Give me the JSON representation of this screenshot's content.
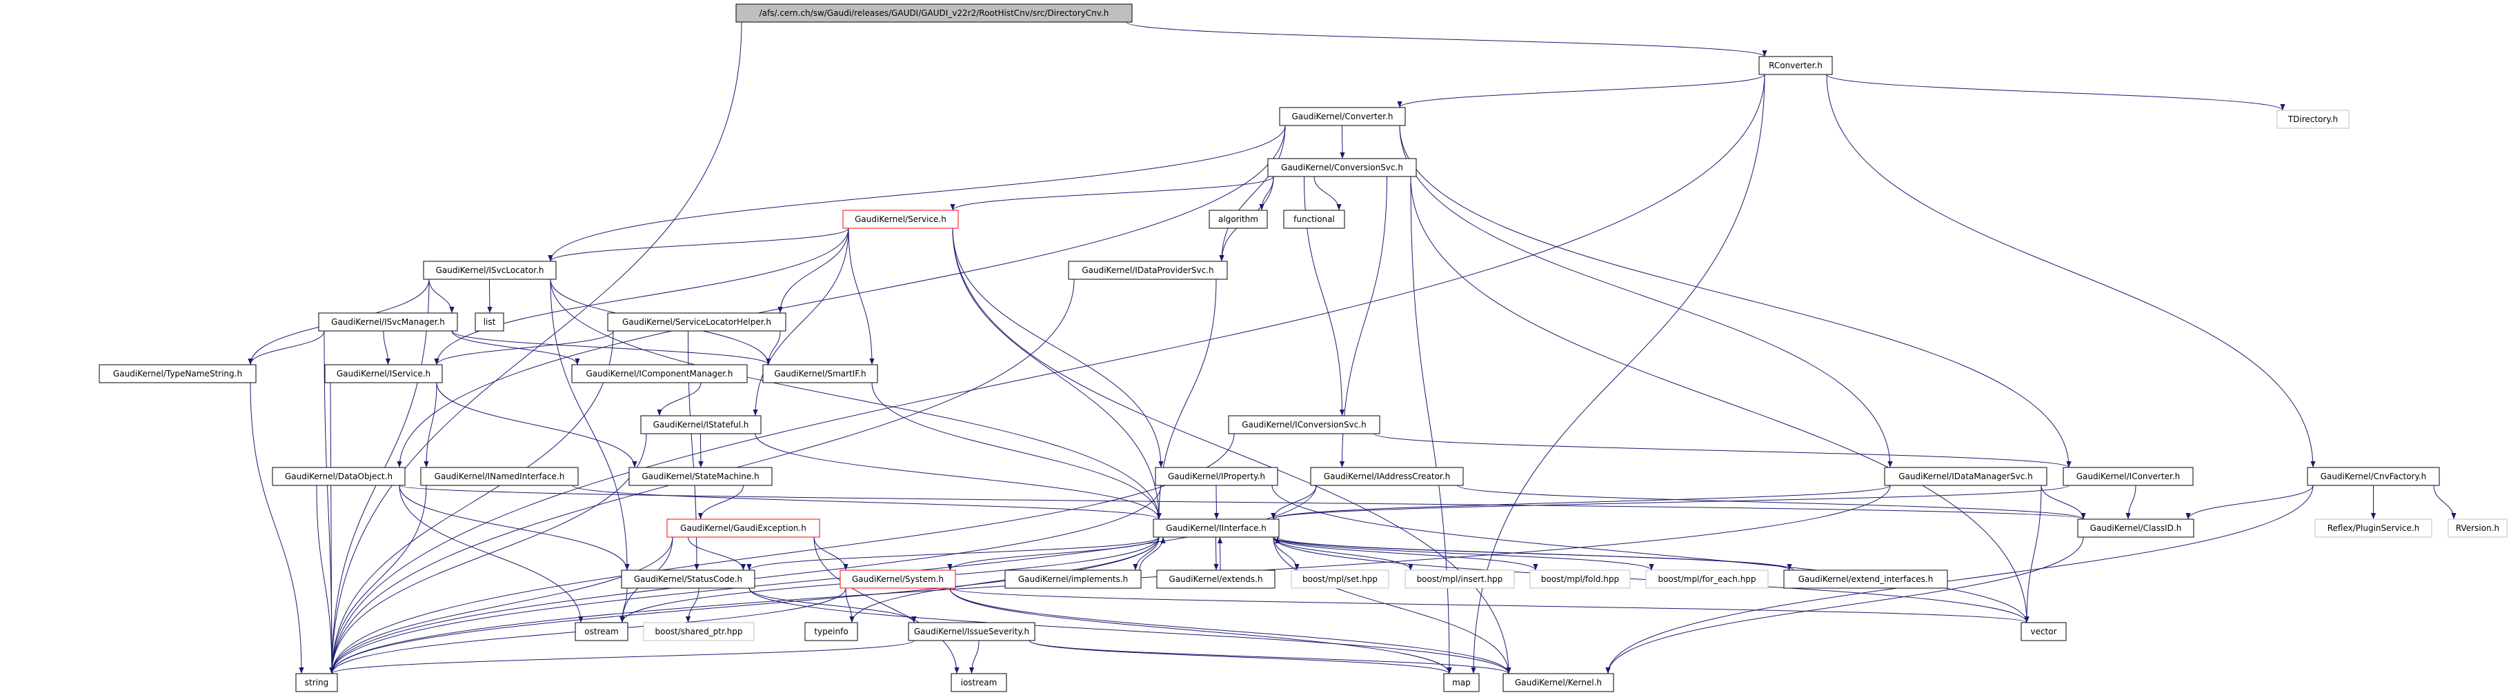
{
  "colors": {
    "edge": "#191970",
    "root_fill": "#bfbfbf",
    "external_border": "#bfbfbf",
    "incomplete_border": "#ff0000",
    "node_border": "#000000"
  },
  "nodes": [
    {
      "id": "title",
      "label": "/afs/.cern.ch/sw/Gaudi/releases/GAUDI/GAUDI_v22r2/RootHistCnv/src/DirectoryCnv.h",
      "style": "root"
    },
    {
      "id": "RConverter",
      "label": "RConverter.h",
      "style": "normal"
    },
    {
      "id": "TDirectory",
      "label": "TDirectory.h",
      "style": "ext"
    },
    {
      "id": "Converter",
      "label": "GaudiKernel/Converter.h",
      "style": "normal"
    },
    {
      "id": "ConversionSvc",
      "label": "GaudiKernel/ConversionSvc.h",
      "style": "normal"
    },
    {
      "id": "Service",
      "label": "GaudiKernel/Service.h",
      "style": "red"
    },
    {
      "id": "algorithm",
      "label": "algorithm",
      "style": "normal"
    },
    {
      "id": "functional",
      "label": "functional",
      "style": "normal"
    },
    {
      "id": "IDataProviderSvc",
      "label": "GaudiKernel/IDataProviderSvc.h",
      "style": "normal"
    },
    {
      "id": "ISvcLocator",
      "label": "GaudiKernel/ISvcLocator.h",
      "style": "normal"
    },
    {
      "id": "ISvcManager",
      "label": "GaudiKernel/ISvcManager.h",
      "style": "normal"
    },
    {
      "id": "list",
      "label": "list",
      "style": "normal"
    },
    {
      "id": "ServiceLocatorHelper",
      "label": "GaudiKernel/ServiceLocatorHelper.h",
      "style": "normal"
    },
    {
      "id": "TypeNameString",
      "label": "GaudiKernel/TypeNameString.h",
      "style": "normal"
    },
    {
      "id": "IService",
      "label": "GaudiKernel/IService.h",
      "style": "normal"
    },
    {
      "id": "IComponentManager",
      "label": "GaudiKernel/IComponentManager.h",
      "style": "normal"
    },
    {
      "id": "SmartIF",
      "label": "GaudiKernel/SmartIF.h",
      "style": "normal"
    },
    {
      "id": "IStateful",
      "label": "GaudiKernel/IStateful.h",
      "style": "normal"
    },
    {
      "id": "IConversionSvc",
      "label": "GaudiKernel/IConversionSvc.h",
      "style": "normal"
    },
    {
      "id": "DataObject",
      "label": "GaudiKernel/DataObject.h",
      "style": "normal"
    },
    {
      "id": "INamedInterface",
      "label": "GaudiKernel/INamedInterface.h",
      "style": "normal"
    },
    {
      "id": "StateMachine",
      "label": "GaudiKernel/StateMachine.h",
      "style": "normal"
    },
    {
      "id": "IProperty",
      "label": "GaudiKernel/IProperty.h",
      "style": "normal"
    },
    {
      "id": "IAddressCreator",
      "label": "GaudiKernel/IAddressCreator.h",
      "style": "normal"
    },
    {
      "id": "IDataManagerSvc",
      "label": "GaudiKernel/IDataManagerSvc.h",
      "style": "normal"
    },
    {
      "id": "IConverter",
      "label": "GaudiKernel/IConverter.h",
      "style": "normal"
    },
    {
      "id": "CnvFactory",
      "label": "GaudiKernel/CnvFactory.h",
      "style": "normal"
    },
    {
      "id": "GaudiException",
      "label": "GaudiKernel/GaudiException.h",
      "style": "red"
    },
    {
      "id": "IInterface",
      "label": "GaudiKernel/IInterface.h",
      "style": "normal"
    },
    {
      "id": "ClassID",
      "label": "GaudiKernel/ClassID.h",
      "style": "normal"
    },
    {
      "id": "Reflex",
      "label": "Reflex/PluginService.h",
      "style": "ext"
    },
    {
      "id": "RVersion",
      "label": "RVersion.h",
      "style": "ext"
    },
    {
      "id": "StatusCode",
      "label": "GaudiKernel/StatusCode.h",
      "style": "normal"
    },
    {
      "id": "System",
      "label": "GaudiKernel/System.h",
      "style": "red"
    },
    {
      "id": "implements",
      "label": "GaudiKernel/implements.h",
      "style": "normal"
    },
    {
      "id": "extends",
      "label": "GaudiKernel/extends.h",
      "style": "normal"
    },
    {
      "id": "mplset",
      "label": "boost/mpl/set.hpp",
      "style": "ext"
    },
    {
      "id": "mplinsert",
      "label": "boost/mpl/insert.hpp",
      "style": "ext"
    },
    {
      "id": "mplfold",
      "label": "boost/mpl/fold.hpp",
      "style": "ext"
    },
    {
      "id": "mplforeach",
      "label": "boost/mpl/for_each.hpp",
      "style": "ext"
    },
    {
      "id": "extend_interfaces",
      "label": "GaudiKernel/extend_interfaces.h",
      "style": "normal"
    },
    {
      "id": "ostream",
      "label": "ostream",
      "style": "normal"
    },
    {
      "id": "shared_ptr",
      "label": "boost/shared_ptr.hpp",
      "style": "ext"
    },
    {
      "id": "typeinfo",
      "label": "typeinfo",
      "style": "normal"
    },
    {
      "id": "IssueSeverity",
      "label": "GaudiKernel/IssueSeverity.h",
      "style": "normal"
    },
    {
      "id": "vector",
      "label": "vector",
      "style": "normal"
    },
    {
      "id": "string",
      "label": "string",
      "style": "normal"
    },
    {
      "id": "iostream",
      "label": "iostream",
      "style": "normal"
    },
    {
      "id": "map",
      "label": "map",
      "style": "normal"
    },
    {
      "id": "Kernel",
      "label": "GaudiKernel/Kernel.h",
      "style": "normal"
    }
  ],
  "edges": [
    [
      "title",
      "RConverter"
    ],
    [
      "title",
      "string"
    ],
    [
      "RConverter",
      "Converter"
    ],
    [
      "RConverter",
      "string"
    ],
    [
      "RConverter",
      "TDirectory"
    ],
    [
      "RConverter",
      "CnvFactory"
    ],
    [
      "RConverter",
      "map"
    ],
    [
      "Converter",
      "ConversionSvc"
    ],
    [
      "Converter",
      "ISvcLocator"
    ],
    [
      "Converter",
      "DataObject"
    ],
    [
      "Converter",
      "IDataProviderSvc"
    ],
    [
      "Converter",
      "IConverter"
    ],
    [
      "Converter",
      "IDataManagerSvc"
    ],
    [
      "ConversionSvc",
      "Service"
    ],
    [
      "ConversionSvc",
      "algorithm"
    ],
    [
      "ConversionSvc",
      "functional"
    ],
    [
      "ConversionSvc",
      "IDataProviderSvc"
    ],
    [
      "ConversionSvc",
      "IConversionSvc"
    ],
    [
      "ConversionSvc",
      "IAddressCreator"
    ],
    [
      "ConversionSvc",
      "vector"
    ],
    [
      "ConversionSvc",
      "map"
    ],
    [
      "Service",
      "ISvcLocator"
    ],
    [
      "Service",
      "IService"
    ],
    [
      "Service",
      "ServiceLocatorHelper"
    ],
    [
      "Service",
      "SmartIF"
    ],
    [
      "Service",
      "IStateful"
    ],
    [
      "Service",
      "IProperty"
    ],
    [
      "Service",
      "IInterface"
    ],
    [
      "Service",
      "Kernel"
    ],
    [
      "ISvcLocator",
      "ISvcManager"
    ],
    [
      "ISvcLocator",
      "list"
    ],
    [
      "ISvcLocator",
      "TypeNameString"
    ],
    [
      "ISvcLocator",
      "string"
    ],
    [
      "ISvcLocator",
      "SmartIF"
    ],
    [
      "ISvcLocator",
      "IInterface"
    ],
    [
      "ISvcLocator",
      "StatusCode"
    ],
    [
      "ISvcManager",
      "IService"
    ],
    [
      "ISvcManager",
      "IComponentManager"
    ],
    [
      "ISvcManager",
      "SmartIF"
    ],
    [
      "ISvcManager",
      "string"
    ],
    [
      "ISvcManager",
      "TypeNameString"
    ],
    [
      "ServiceLocatorHelper",
      "IService"
    ],
    [
      "ServiceLocatorHelper",
      "SmartIF"
    ],
    [
      "ServiceLocatorHelper",
      "StatusCode"
    ],
    [
      "ServiceLocatorHelper",
      "string"
    ],
    [
      "TypeNameString",
      "string"
    ],
    [
      "IService",
      "INamedInterface"
    ],
    [
      "IService",
      "StateMachine"
    ],
    [
      "IService",
      "string"
    ],
    [
      "IComponentManager",
      "IStateful"
    ],
    [
      "SmartIF",
      "IInterface"
    ],
    [
      "IStateful",
      "StateMachine"
    ],
    [
      "IStateful",
      "IInterface"
    ],
    [
      "IStateful",
      "string"
    ],
    [
      "IDataProviderSvc",
      "IInterface"
    ],
    [
      "IDataProviderSvc",
      "string"
    ],
    [
      "IConversionSvc",
      "IConverter"
    ],
    [
      "IConversionSvc",
      "string"
    ],
    [
      "StateMachine",
      "GaudiException"
    ],
    [
      "DataObject",
      "string"
    ],
    [
      "DataObject",
      "ostream"
    ],
    [
      "DataObject",
      "StatusCode"
    ],
    [
      "DataObject",
      "ClassID"
    ],
    [
      "INamedInterface",
      "IInterface"
    ],
    [
      "INamedInterface",
      "string"
    ],
    [
      "IProperty",
      "IInterface"
    ],
    [
      "IProperty",
      "string"
    ],
    [
      "IProperty",
      "vector"
    ],
    [
      "IAddressCreator",
      "IInterface"
    ],
    [
      "IAddressCreator",
      "ClassID"
    ],
    [
      "IAddressCreator",
      "string"
    ],
    [
      "IDataManagerSvc",
      "IInterface"
    ],
    [
      "IDataManagerSvc",
      "ClassID"
    ],
    [
      "IDataManagerSvc",
      "vector"
    ],
    [
      "IDataManagerSvc",
      "string"
    ],
    [
      "IConverter",
      "IInterface"
    ],
    [
      "IConverter",
      "ClassID"
    ],
    [
      "CnvFactory",
      "ClassID"
    ],
    [
      "CnvFactory",
      "Reflex"
    ],
    [
      "CnvFactory",
      "RVersion"
    ],
    [
      "CnvFactory",
      "Kernel"
    ],
    [
      "ClassID",
      "Kernel"
    ],
    [
      "GaudiException",
      "StatusCode"
    ],
    [
      "GaudiException",
      "System"
    ],
    [
      "GaudiException",
      "string"
    ],
    [
      "GaudiException",
      "iostream"
    ],
    [
      "GaudiException",
      "ostream"
    ],
    [
      "IInterface",
      "StatusCode"
    ],
    [
      "IInterface",
      "System"
    ],
    [
      "IInterface",
      "implements"
    ],
    [
      "IInterface",
      "extends"
    ],
    [
      "IInterface",
      "mplset"
    ],
    [
      "IInterface",
      "mplinsert"
    ],
    [
      "IInterface",
      "mplfold"
    ],
    [
      "IInterface",
      "mplforeach"
    ],
    [
      "IInterface",
      "extend_interfaces"
    ],
    [
      "IInterface",
      "ostream"
    ],
    [
      "IInterface",
      "typeinfo"
    ],
    [
      "IInterface",
      "vector"
    ],
    [
      "IInterface",
      "Kernel"
    ],
    [
      "IInterface",
      "string"
    ],
    [
      "implements",
      "IInterface"
    ],
    [
      "extends",
      "IInterface"
    ],
    [
      "extend_interfaces",
      "IInterface"
    ],
    [
      "StatusCode",
      "ostream"
    ],
    [
      "StatusCode",
      "shared_ptr"
    ],
    [
      "StatusCode",
      "IssueSeverity"
    ],
    [
      "StatusCode",
      "Kernel"
    ],
    [
      "System",
      "typeinfo"
    ],
    [
      "System",
      "string"
    ],
    [
      "System",
      "vector"
    ],
    [
      "System",
      "map"
    ],
    [
      "System",
      "Kernel"
    ],
    [
      "IssueSeverity",
      "string"
    ],
    [
      "IssueSeverity",
      "iostream"
    ],
    [
      "IssueSeverity",
      "map"
    ],
    [
      "IssueSeverity",
      "Kernel"
    ]
  ]
}
